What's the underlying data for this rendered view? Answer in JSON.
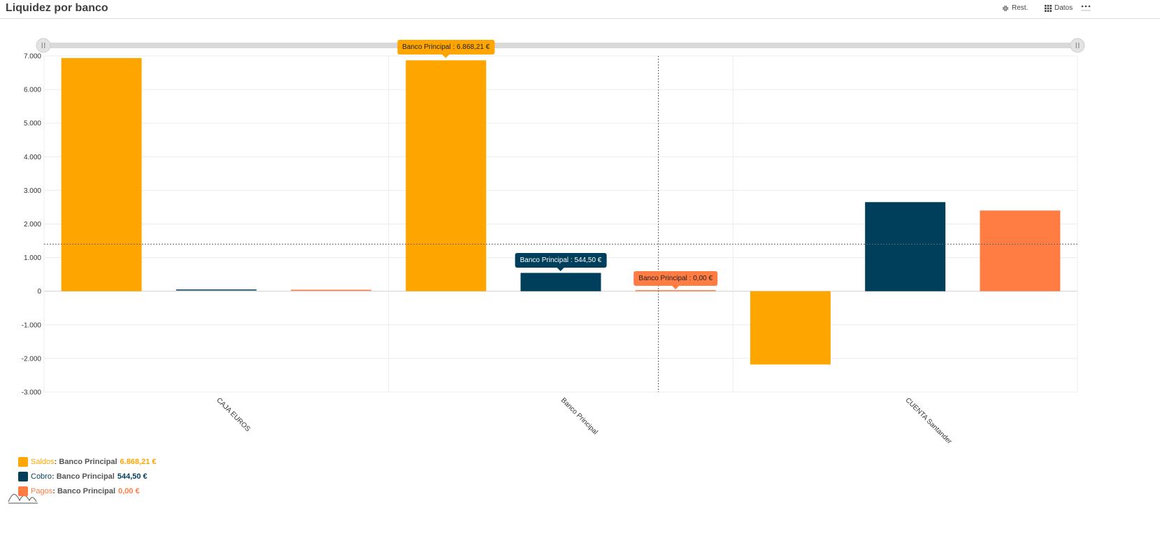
{
  "header": {
    "title": "Liquidez por banco",
    "reset_label": "Rest.",
    "data_label": "Datos",
    "more_icon": "more-dots-icon"
  },
  "chart_data": {
    "type": "bar",
    "categories": [
      "CAJA EUROS",
      "Banco Principal",
      "CUENTA Santander"
    ],
    "series": [
      {
        "name": "Saldos",
        "color": "#ffa500",
        "values": [
          6936,
          6868.21,
          -2180
        ]
      },
      {
        "name": "Cobro",
        "color": "#003f5c",
        "values": [
          20,
          544.5,
          2650
        ]
      },
      {
        "name": "Pagos",
        "color": "#ff7c43",
        "values": [
          12,
          0,
          2400
        ]
      }
    ],
    "ylim": [
      -3000,
      7000
    ],
    "yticks": [
      "-3.000",
      "-2.000",
      "-1.000",
      "0",
      "1.000",
      "2.000",
      "3.000",
      "4.000",
      "5.000",
      "6.000",
      "7.000"
    ],
    "crosshair_y": 1400,
    "grid": true,
    "slider": true,
    "tooltips": [
      {
        "series": 0,
        "category": 1,
        "text": "Banco Principal : 6.868,21 €"
      },
      {
        "series": 1,
        "category": 1,
        "text": "Banco Principal : 544,50 €"
      },
      {
        "series": 2,
        "category": 1,
        "text": "Banco Principal : 0,00 €"
      }
    ],
    "legend": {
      "position": "bottom-left",
      "separator": ":",
      "items": [
        {
          "name": "Saldos",
          "color": "#ffa500",
          "bank": "Banco Principal",
          "value": "6.868,21 €"
        },
        {
          "name": "Cobro",
          "color": "#003f5c",
          "bank": "Banco Principal",
          "value": "544,50 €"
        },
        {
          "name": "Pagos",
          "color": "#ff7c43",
          "bank": "Banco Principal",
          "value": "0,00 €"
        }
      ]
    }
  }
}
